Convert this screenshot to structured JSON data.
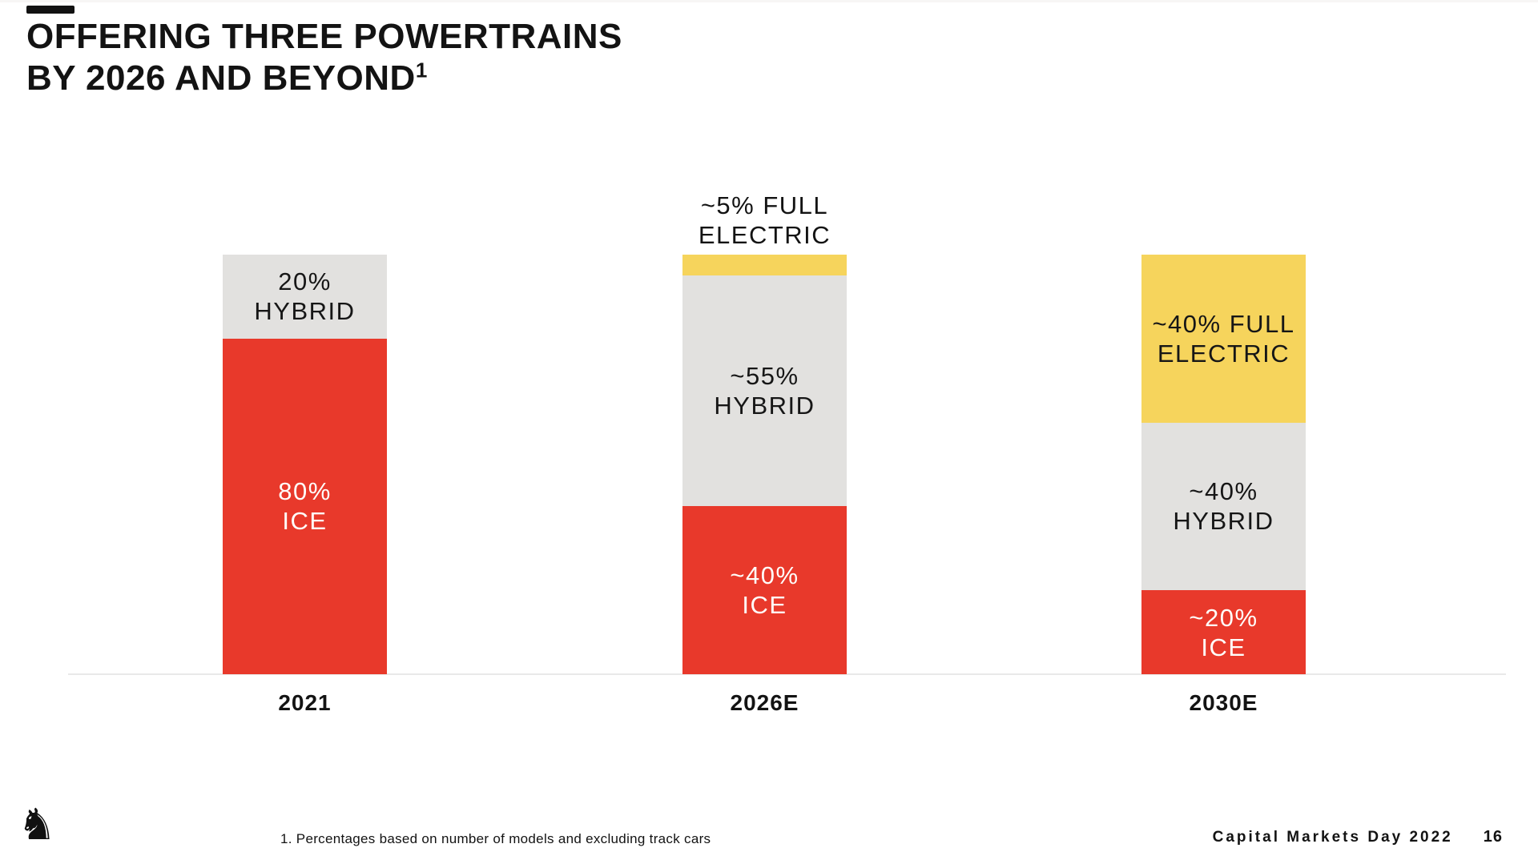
{
  "slide": {
    "title_line1": "OFFERING THREE POWERTRAINS",
    "title_line2": "BY 2026 AND BEYOND",
    "title_footnote_marker": "1"
  },
  "chart_data": {
    "type": "bar",
    "subtype": "stacked-percent",
    "unit": "%",
    "ylim": [
      0,
      100
    ],
    "grid": false,
    "legend": "none",
    "categories": [
      "2021",
      "2026E",
      "2030E"
    ],
    "series": [
      {
        "name": "ICE",
        "values": [
          80,
          40,
          20
        ],
        "approx": [
          false,
          true,
          true
        ],
        "color": "#E8392B"
      },
      {
        "name": "HYBRID",
        "values": [
          20,
          55,
          40
        ],
        "approx": [
          false,
          true,
          true
        ],
        "color": "#E2E1DF"
      },
      {
        "name": "FULL ELECTRIC",
        "values": [
          0,
          5,
          40
        ],
        "approx": [
          false,
          true,
          true
        ],
        "color": "#F6D45C"
      }
    ],
    "colors": {
      "ice": "#E8392B",
      "hybrid": "#E2E1DF",
      "full_electric": "#F6D45C"
    },
    "axis": {
      "baseline_color": "#E9E9E9",
      "label_color": "#131313"
    },
    "bars": [
      {
        "category": "2021",
        "segments": [
          {
            "series": "hybrid",
            "value": 20,
            "label_lines": [
              "20%",
              "HYBRID"
            ],
            "label_position": "inside",
            "text": "dark"
          },
          {
            "series": "ice",
            "value": 80,
            "label_lines": [
              "80%",
              "ICE"
            ],
            "label_position": "inside",
            "text": "light"
          }
        ]
      },
      {
        "category": "2026E",
        "segments": [
          {
            "series": "full_electric",
            "value": 5,
            "label_lines": [
              "~5% FULL",
              "ELECTRIC"
            ],
            "label_position": "above",
            "text": "dark"
          },
          {
            "series": "hybrid",
            "value": 55,
            "label_lines": [
              "~55%",
              "HYBRID"
            ],
            "label_position": "inside",
            "text": "dark"
          },
          {
            "series": "ice",
            "value": 40,
            "label_lines": [
              "~40%",
              "ICE"
            ],
            "label_position": "inside",
            "text": "light"
          }
        ]
      },
      {
        "category": "2030E",
        "segments": [
          {
            "series": "full_electric",
            "value": 40,
            "label_lines": [
              "~40% FULL",
              "ELECTRIC"
            ],
            "label_position": "inside",
            "text": "dark"
          },
          {
            "series": "hybrid",
            "value": 40,
            "label_lines": [
              "~40%",
              "HYBRID"
            ],
            "label_position": "inside",
            "text": "dark"
          },
          {
            "series": "ice",
            "value": 20,
            "label_lines": [
              "~20%",
              "ICE"
            ],
            "label_position": "inside",
            "text": "light"
          }
        ]
      }
    ]
  },
  "footer": {
    "footnote": "1. Percentages based on number of models and excluding track cars",
    "event_label": "Capital Markets Day 2022",
    "page_number": "16",
    "logo_glyph": "♞",
    "logo_name": "ferrari-prancing-horse"
  }
}
